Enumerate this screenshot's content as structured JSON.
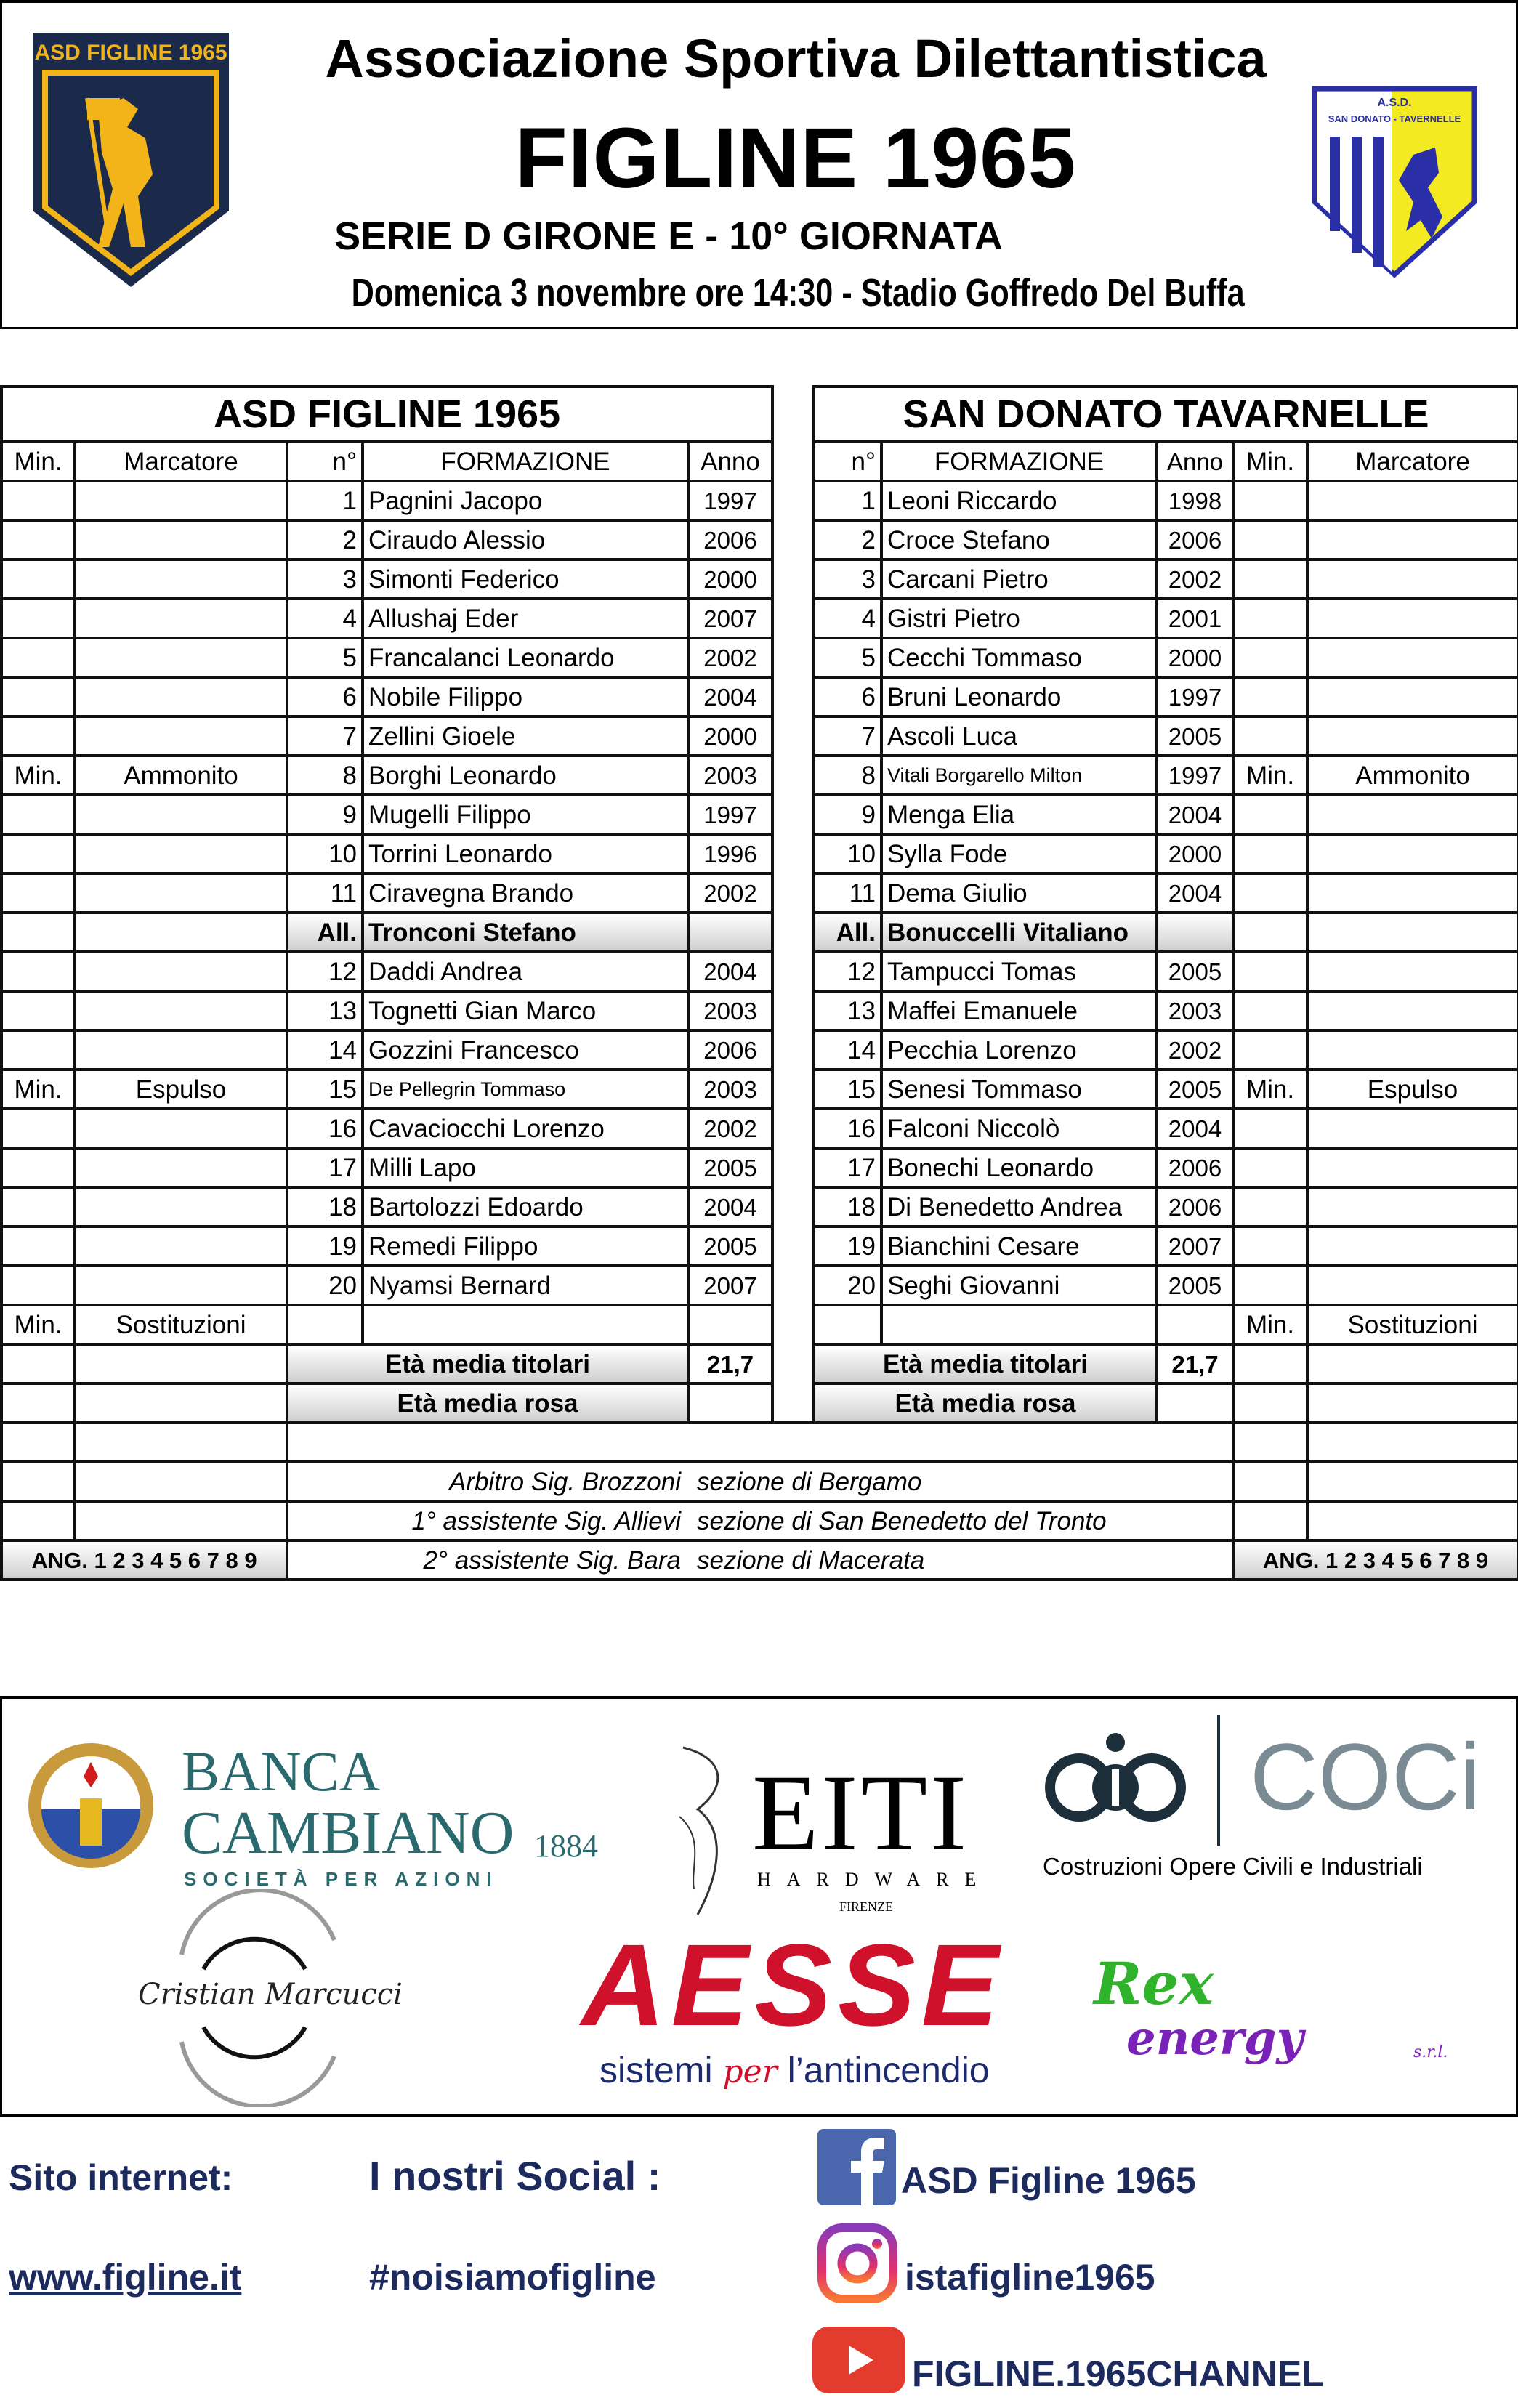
{
  "header": {
    "association": "Associazione Sportiva Dilettantistica",
    "club": "FIGLINE 1965",
    "league": "SERIE D GIRONE E - 10° GIORNATA",
    "match_info": "Domenica 3 novembre ore 14:30  -  Stadio Goffredo Del Buffa",
    "home_logo_text": "ASD FIGLINE 1965",
    "away_logo_text": [
      "A.S.D.",
      "SAN DONATO - TAVERNELLE"
    ]
  },
  "colors": {
    "home_navy": "#1b2a4a",
    "home_gold": "#f2b418",
    "away_blue": "#2a2fa8",
    "away_yellow": "#f4ea22",
    "footer_text": "#1c2a5e",
    "aesse_red": "#d0112b"
  },
  "sheet": {
    "headers": {
      "min": "Min.",
      "scorer": "Marcatore",
      "number": "n°",
      "lineup": "FORMAZIONE",
      "year": "Anno"
    },
    "markers": {
      "booked": "Ammonito",
      "sent_off": "Espulso",
      "subs": "Sostituzioni"
    },
    "home": {
      "name": "ASD FIGLINE 1965",
      "rows": [
        {
          "n": "1",
          "name": "Pagnini Jacopo",
          "year": "1997"
        },
        {
          "n": "2",
          "name": "Ciraudo Alessio",
          "year": "2006"
        },
        {
          "n": "3",
          "name": "Simonti Federico",
          "year": "2000"
        },
        {
          "n": "4",
          "name": "Allushaj Eder",
          "year": "2007"
        },
        {
          "n": "5",
          "name": "Francalanci Leonardo",
          "year": "2002"
        },
        {
          "n": "6",
          "name": "Nobile Filippo",
          "year": "2004"
        },
        {
          "n": "7",
          "name": "Zellini Gioele",
          "year": "2000"
        },
        {
          "n": "8",
          "name": "Borghi Leonardo",
          "year": "2003"
        },
        {
          "n": "9",
          "name": "Mugelli Filippo",
          "year": "1997"
        },
        {
          "n": "10",
          "name": "Torrini Leonardo",
          "year": "1996"
        },
        {
          "n": "11",
          "name": "Ciravegna Brando",
          "year": "2002"
        },
        {
          "n": "All.",
          "name": "Tronconi Stefano",
          "year": ""
        },
        {
          "n": "12",
          "name": "Daddi Andrea",
          "year": "2004"
        },
        {
          "n": "13",
          "name": "Tognetti Gian Marco",
          "year": "2003"
        },
        {
          "n": "14",
          "name": "Gozzini Francesco",
          "year": "2006"
        },
        {
          "n": "15",
          "name": "De Pellegrin Tommaso",
          "year": "2003"
        },
        {
          "n": "16",
          "name": "Cavaciocchi Lorenzo",
          "year": "2002"
        },
        {
          "n": "17",
          "name": "Milli Lapo",
          "year": "2005"
        },
        {
          "n": "18",
          "name": "Bartolozzi Edoardo",
          "year": "2004"
        },
        {
          "n": "19",
          "name": "Remedi Filippo",
          "year": "2005"
        },
        {
          "n": "20",
          "name": "Nyamsi Bernard",
          "year": "2007"
        }
      ],
      "avg_starters_label": "Età media titolari",
      "avg_starters": "21,7",
      "avg_squad_label": "Età media rosa",
      "avg_squad": ""
    },
    "away": {
      "name": "SAN DONATO TAVARNELLE",
      "rows": [
        {
          "n": "1",
          "name": "Leoni Riccardo",
          "year": "1998"
        },
        {
          "n": "2",
          "name": "Croce Stefano",
          "year": "2006"
        },
        {
          "n": "3",
          "name": "Carcani Pietro",
          "year": "2002"
        },
        {
          "n": "4",
          "name": "Gistri Pietro",
          "year": "2001"
        },
        {
          "n": "5",
          "name": "Cecchi Tommaso",
          "year": "2000"
        },
        {
          "n": "6",
          "name": "Bruni Leonardo",
          "year": "1997"
        },
        {
          "n": "7",
          "name": "Ascoli Luca",
          "year": "2005"
        },
        {
          "n": "8",
          "name": "Vitali Borgarello Milton",
          "year": "1997"
        },
        {
          "n": "9",
          "name": "Menga Elia",
          "year": "2004"
        },
        {
          "n": "10",
          "name": "Sylla Fode",
          "year": "2000"
        },
        {
          "n": "11",
          "name": "Dema Giulio",
          "year": "2004"
        },
        {
          "n": "All.",
          "name": "Bonuccelli Vitaliano",
          "year": ""
        },
        {
          "n": "12",
          "name": "Tampucci Tomas",
          "year": "2005"
        },
        {
          "n": "13",
          "name": "Maffei Emanuele",
          "year": "2003"
        },
        {
          "n": "14",
          "name": "Pecchia Lorenzo",
          "year": "2002"
        },
        {
          "n": "15",
          "name": "Senesi Tommaso",
          "year": "2005"
        },
        {
          "n": "16",
          "name": "Falconi Niccolò",
          "year": "2004"
        },
        {
          "n": "17",
          "name": "Bonechi Leonardo",
          "year": "2006"
        },
        {
          "n": "18",
          "name": "Di Benedetto Andrea",
          "year": "2006"
        },
        {
          "n": "19",
          "name": "Bianchini Cesare",
          "year": "2007"
        },
        {
          "n": "20",
          "name": "Seghi Giovanni",
          "year": "2005"
        }
      ],
      "avg_starters_label": "Età media titolari",
      "avg_starters": "21,7",
      "avg_squad_label": "Età media rosa",
      "avg_squad": ""
    },
    "officials": [
      {
        "role": "Arbitro Sig. Brozzoni",
        "section": "sezione di Bergamo"
      },
      {
        "role": "1° assistente Sig. Allievi",
        "section": "sezione di San Benedetto del Tronto"
      },
      {
        "role": "2° assistente Sig. Bara",
        "section": "sezione di Macerata"
      }
    ],
    "corners": "ANG. 1 2 3 4 5 6 7 8 9"
  },
  "sponsors": {
    "banca": {
      "line1": "BANCA",
      "line2": "CAMBIANO",
      "year": "1884",
      "sub": "SOCIETÀ PER AZIONI"
    },
    "eiti": {
      "name": "EITI",
      "sub": "HARDWARE",
      "city": "FIRENZE"
    },
    "coci": {
      "name": "COCi",
      "sub": "Costruzioni Opere Civili e Industriali"
    },
    "marcucci": {
      "name": "Cristian Marcucci"
    },
    "aesse": {
      "name": "AESSE",
      "tag_a": "sistemi",
      "tag_per": "per",
      "tag_b": "l’antincendio"
    },
    "rex": {
      "line1": "Rex",
      "line2": "energy",
      "suffix": "s.r.l."
    }
  },
  "footer": {
    "site_label": "Sito internet:",
    "site_url": "www.figline.it",
    "social_label": "I nostri Social :",
    "hashtag": "#noisiamofigline",
    "facebook": "ASD Figline 1965",
    "instagram": "istafigline1965",
    "youtube": "FIGLINE.1965CHANNEL"
  }
}
